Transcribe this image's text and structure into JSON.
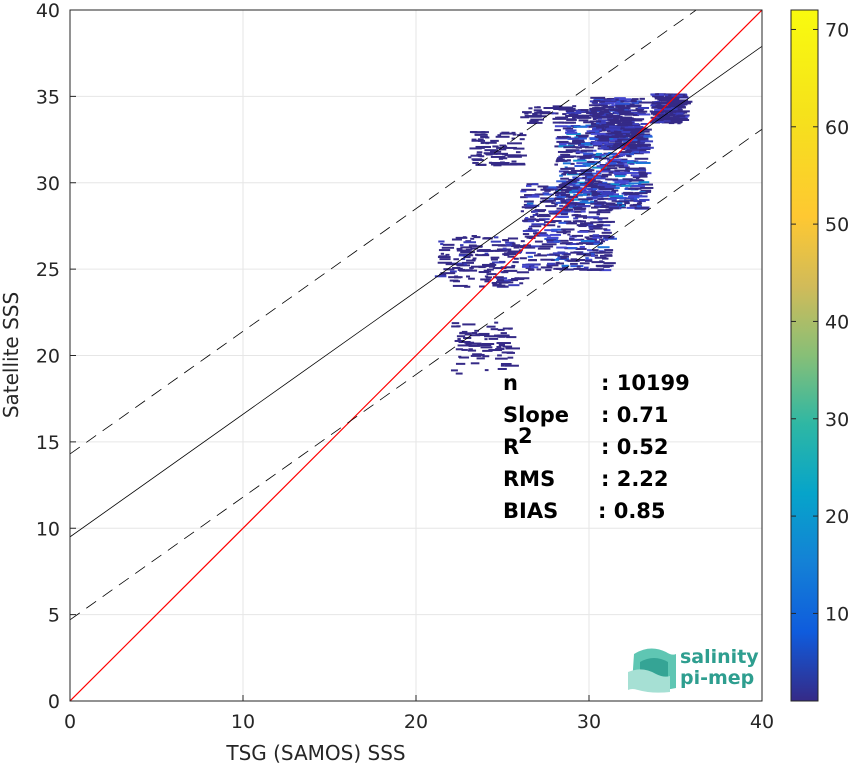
{
  "chart_data": {
    "type": "scatter",
    "subtype": "density-scatter",
    "xlabel": "TSG (SAMOS) SSS",
    "ylabel": "Satellite SSS",
    "xlim": [
      0,
      40
    ],
    "ylim": [
      0,
      40
    ],
    "xticks": [
      0,
      10,
      20,
      30,
      40
    ],
    "yticks": [
      0,
      5,
      10,
      15,
      20,
      25,
      30,
      35,
      40
    ],
    "grid": true,
    "colorbar": {
      "range": [
        1,
        72
      ],
      "ticks": [
        10,
        20,
        30,
        40,
        50,
        60,
        70
      ],
      "colormap": "parula"
    },
    "lines": [
      {
        "kind": "identity",
        "slope": 1.0,
        "intercept": 0.0,
        "color": "#ff0000",
        "style": "solid"
      },
      {
        "kind": "fit",
        "slope": 0.71,
        "intercept": 9.5,
        "color": "#000000",
        "style": "solid"
      },
      {
        "kind": "upper-bound",
        "slope": 0.71,
        "intercept": 14.3,
        "color": "#000000",
        "style": "dashed"
      },
      {
        "kind": "lower-bound",
        "slope": 0.71,
        "intercept": 4.7,
        "color": "#000000",
        "style": "dashed"
      }
    ],
    "density_clusters": [
      {
        "x": [
          28,
          33
        ],
        "y": [
          28.5,
          33.5
        ],
        "weight": 1.0
      },
      {
        "x": [
          26,
          31
        ],
        "y": [
          25,
          30
        ],
        "weight": 0.7
      },
      {
        "x": [
          30,
          33
        ],
        "y": [
          32,
          35
        ],
        "weight": 0.6
      },
      {
        "x": [
          33.5,
          35.2
        ],
        "y": [
          33.5,
          35.2
        ],
        "weight": 0.4
      },
      {
        "x": [
          21,
          26
        ],
        "y": [
          24,
          27
        ],
        "weight": 0.3
      },
      {
        "x": [
          22,
          25.5
        ],
        "y": [
          19,
          22
        ],
        "weight": 0.15
      },
      {
        "x": [
          23,
          26
        ],
        "y": [
          31,
          33
        ],
        "weight": 0.15
      },
      {
        "x": [
          26,
          32
        ],
        "y": [
          33.5,
          34.5
        ],
        "weight": 0.2
      }
    ],
    "stats": [
      {
        "label": "n",
        "value": ": 10199"
      },
      {
        "label": "Slope",
        "value": ": 0.71"
      },
      {
        "label": "R",
        "sup": "2",
        "value": ": 0.52"
      },
      {
        "label": "RMS",
        "value": ": 2.22"
      },
      {
        "label": "BIAS",
        "value": ": 0.85"
      }
    ]
  },
  "logo": {
    "line1": "salinity",
    "line2": "pi-mep",
    "color": "#2e9e8f"
  }
}
